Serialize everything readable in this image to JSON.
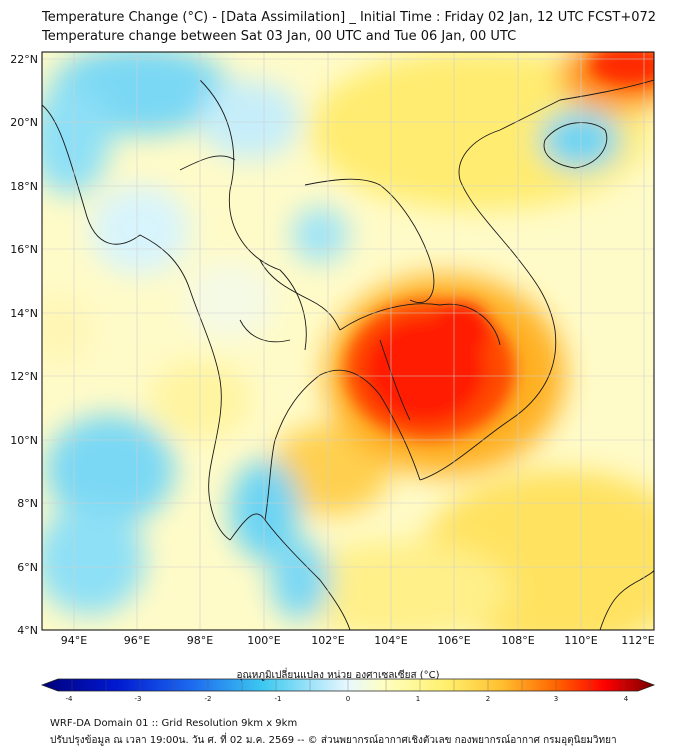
{
  "header": {
    "title_line1": "Temperature Change (°C) - [Data Assimilation] _ Initial Time : Friday 02 Jan, 12 UTC FCST+072",
    "title_line2": "Temperature change between Sat 03 Jan, 00 UTC and Tue 06 Jan, 00 UTC"
  },
  "map": {
    "lat_ticks": [
      "4°N",
      "6°N",
      "8°N",
      "10°N",
      "12°N",
      "14°N",
      "16°N",
      "18°N",
      "20°N",
      "22°N"
    ],
    "lon_ticks": [
      "94°E",
      "96°E",
      "98°E",
      "100°E",
      "102°E",
      "104°E",
      "106°E",
      "108°E",
      "110°E",
      "112°E"
    ],
    "warm_center_region": "Cambodia / southern Vietnam",
    "cool_areas": [
      "Andaman Sea",
      "Gulf of Thailand west coast",
      "northern Myanmar",
      "Hainan"
    ]
  },
  "colorbar": {
    "label": "อุณหภูมิเปลี่ยนแปลง หน่วย องศาเซลเซียส (°C)",
    "ticks": [
      "-4",
      "-3",
      "-2",
      "-1",
      "0",
      "1",
      "2",
      "3",
      "4"
    ],
    "colors": [
      "#00007a",
      "#0010c8",
      "#1e6ef0",
      "#3cc8f0",
      "#e6f8ff",
      "#ffffc8",
      "#fff06e",
      "#ffb428",
      "#ff3c00",
      "#ff0000",
      "#780000"
    ]
  },
  "footer": {
    "line1": "WRF-DA Domain 01 :: Grid Resolution 9km x 9km",
    "line2": "ปรับปรุงข้อมูล ณ เวลา 19:00น. วัน ศ. ที่ 02 ม.ค. 2569 -- © ส่วนพยากรณ์อากาศเชิงตัวเลข กองพยากรณ์อากาศ กรมอุตุนิยมวิทยา"
  }
}
